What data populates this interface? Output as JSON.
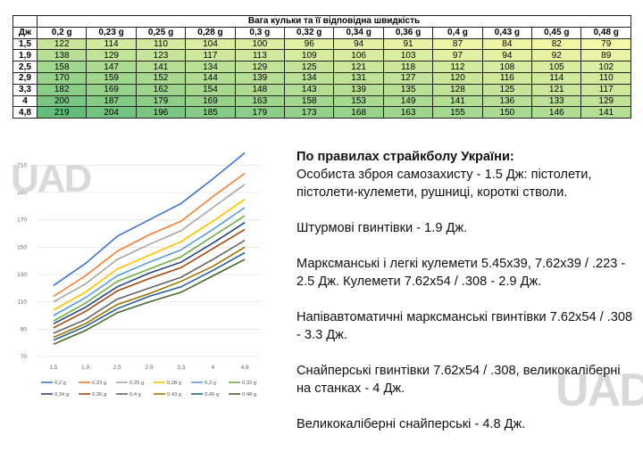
{
  "table": {
    "title": "Вага кульки та її відповідна швидкість",
    "corner": "Дж",
    "weights": [
      "0,2 g",
      "0,23 g",
      "0,25 g",
      "0,28 g",
      "0,3 g",
      "0,32 g",
      "0,34 g",
      "0,36 g",
      "0,4 g",
      "0,43 g",
      "0,45 g",
      "0,48 g"
    ],
    "rows": [
      {
        "j": "1,5",
        "v": [
          122,
          114,
          110,
          104,
          100,
          96,
          94,
          91,
          87,
          84,
          82,
          79
        ]
      },
      {
        "j": "1,9",
        "v": [
          138,
          129,
          123,
          117,
          113,
          109,
          106,
          103,
          97,
          94,
          92,
          89
        ]
      },
      {
        "j": "2,5",
        "v": [
          158,
          147,
          141,
          134,
          129,
          125,
          121,
          118,
          112,
          108,
          105,
          102
        ]
      },
      {
        "j": "2,9",
        "v": [
          170,
          159,
          152,
          144,
          139,
          134,
          131,
          127,
          120,
          116,
          114,
          110
        ]
      },
      {
        "j": "3,3",
        "v": [
          182,
          169,
          162,
          154,
          148,
          143,
          139,
          135,
          128,
          125,
          121,
          117
        ]
      },
      {
        "j": "4",
        "v": [
          200,
          187,
          179,
          169,
          163,
          158,
          153,
          149,
          141,
          136,
          133,
          129
        ]
      },
      {
        "j": "4,8",
        "v": [
          219,
          204,
          196,
          185,
          179,
          173,
          168,
          163,
          155,
          150,
          146,
          141
        ]
      }
    ]
  },
  "chart_data": {
    "type": "line",
    "categories": [
      "1,5",
      "1,9",
      "2,5",
      "2,9",
      "3,3",
      "4",
      "4,8"
    ],
    "ylim": [
      70,
      220
    ],
    "yticks": [
      70,
      90,
      110,
      130,
      150,
      170,
      190,
      210
    ],
    "legend_position": "bottom",
    "grid": true,
    "series": [
      {
        "name": "0,2 g",
        "color": "#4472c4",
        "values": [
          122,
          138,
          158,
          170,
          182,
          200,
          219
        ]
      },
      {
        "name": "0,23 g",
        "color": "#ed7d31",
        "values": [
          114,
          129,
          147,
          159,
          169,
          187,
          204
        ]
      },
      {
        "name": "0,25 g",
        "color": "#a5a5a5",
        "values": [
          110,
          123,
          141,
          152,
          162,
          179,
          196
        ]
      },
      {
        "name": "0,28 g",
        "color": "#ffc000",
        "values": [
          104,
          117,
          134,
          144,
          154,
          169,
          185
        ]
      },
      {
        "name": "0,3 g",
        "color": "#5b9bd5",
        "values": [
          100,
          113,
          129,
          139,
          148,
          163,
          179
        ]
      },
      {
        "name": "0,32 g",
        "color": "#70ad47",
        "values": [
          96,
          109,
          125,
          134,
          143,
          158,
          173
        ]
      },
      {
        "name": "0,34 g",
        "color": "#264478",
        "values": [
          94,
          106,
          121,
          131,
          139,
          153,
          168
        ]
      },
      {
        "name": "0,36 g",
        "color": "#9e480e",
        "values": [
          91,
          103,
          118,
          127,
          135,
          149,
          163
        ]
      },
      {
        "name": "0,4 g",
        "color": "#636363",
        "values": [
          87,
          97,
          112,
          120,
          128,
          141,
          155
        ]
      },
      {
        "name": "0,43 g",
        "color": "#997300",
        "values": [
          84,
          94,
          108,
          116,
          125,
          136,
          150
        ]
      },
      {
        "name": "0,45 g",
        "color": "#255e91",
        "values": [
          82,
          92,
          105,
          114,
          121,
          133,
          146
        ]
      },
      {
        "name": "0,48 g",
        "color": "#43682b",
        "values": [
          79,
          89,
          102,
          110,
          117,
          129,
          141
        ]
      }
    ]
  },
  "watermark": "UAD",
  "rules": {
    "title": "По правилах страйкболу України:",
    "items": [
      "Особиста зброя самозахисту - 1.5 Дж: пістолети, пістолети-кулемети, рушниці, короткі стволи.",
      "Штурмові гвинтівки - 1.9 Дж.",
      "Марксманські і легкі кулемети 5.45x39, 7.62x39 / .223 - 2.5 Дж. Кулемети 7.62x54 / .308 - 2.9 Дж.",
      "Напівавтоматичні марксманські гвинтівки 7.62x54 / .308 - 3.3 Дж.",
      "Снайперські гвинтівки 7.62x54 / .308, великокаліберні на станках - 4 Дж.",
      "Великокаліберні снайперські - 4.8 Дж."
    ]
  },
  "colors": {
    "low": "#f4f7a8",
    "high": "#63be7b"
  }
}
